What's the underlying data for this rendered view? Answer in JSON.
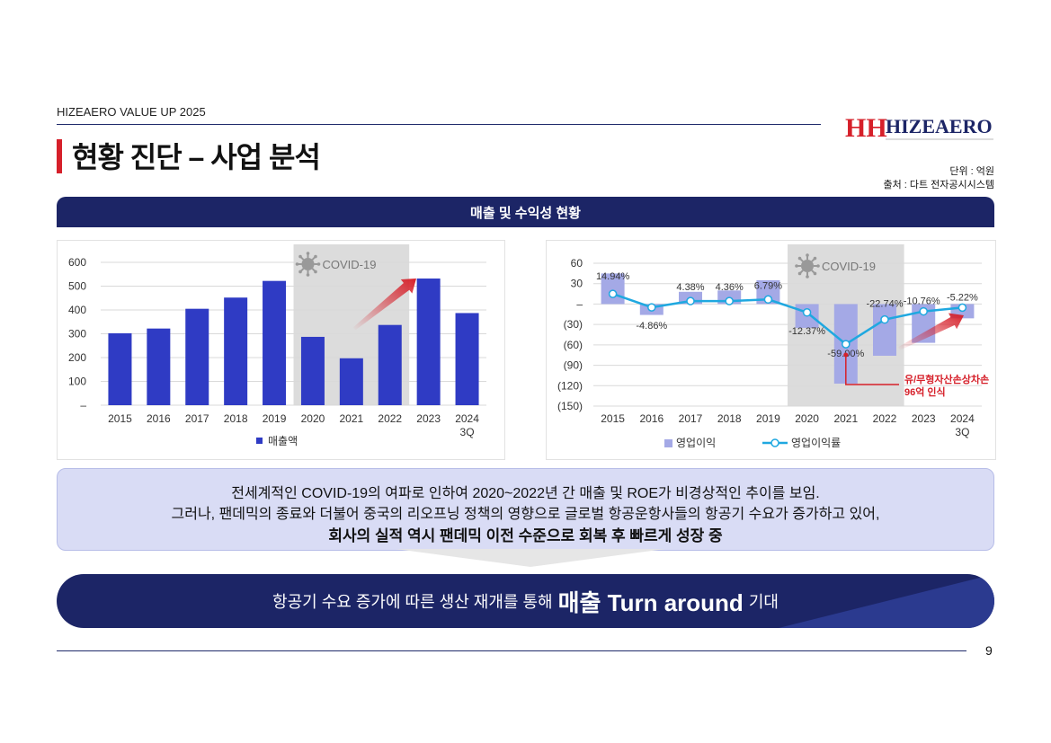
{
  "header": {
    "brand_line": "HIZEAERO VALUE UP 2025",
    "page_title": "현황 진단 – 사업 분석",
    "logo_text": "HIZEAERO",
    "logo_mark": "HH",
    "unit_text": "단위 : 억원",
    "source_text": "출처 : 다트 전자공시시스템"
  },
  "banner": {
    "title": "매출 및 수익성 현황"
  },
  "colors": {
    "navy": "#1c2566",
    "bar_blue": "#2f3bc4",
    "bar_light": "#a4a9e6",
    "line_cyan": "#1fa8e0",
    "red": "#d6202a",
    "covid_band": "#dcdcdc"
  },
  "chart_data": [
    {
      "type": "bar",
      "categories": [
        "2015",
        "2016",
        "2017",
        "2018",
        "2019",
        "2020",
        "2021",
        "2022",
        "2023",
        "2024\n3Q"
      ],
      "series": [
        {
          "name": "매출액",
          "values": [
            302,
            322,
            405,
            452,
            522,
            287,
            197,
            337,
            532,
            387
          ]
        }
      ],
      "y_ticks": [
        "–",
        "100",
        "200",
        "300",
        "400",
        "500",
        "600"
      ],
      "ylim": [
        0,
        600
      ],
      "grid": true,
      "legend": "bottom-center",
      "annotation": "COVID-19",
      "covid_range": [
        "2020",
        "2022"
      ]
    },
    {
      "type": "bar+line",
      "categories": [
        "2015",
        "2016",
        "2017",
        "2018",
        "2019",
        "2020",
        "2021",
        "2022",
        "2023",
        "2024\n3Q"
      ],
      "series": [
        {
          "name": "영업이익",
          "type": "bar",
          "values": [
            45,
            -16,
            18,
            20,
            35,
            -35,
            -117,
            -76,
            -57,
            -21
          ]
        },
        {
          "name": "영업이익률",
          "type": "line",
          "values": [
            14.94,
            -4.86,
            4.38,
            4.36,
            6.79,
            -12.37,
            -59.0,
            -22.74,
            -10.76,
            -5.22
          ],
          "labels": [
            "14.94%",
            "-4.86%",
            "4.38%",
            "4.36%",
            "6.79%",
            "-12.37%",
            "-59.00%",
            "-22.74%",
            "-10.76%",
            "-5.22%"
          ]
        }
      ],
      "y_ticks": [
        "60",
        "30",
        "–",
        "(30)",
        "(60)",
        "(90)",
        "(120)",
        "(150)"
      ],
      "ylim": [
        -150,
        60
      ],
      "grid": true,
      "legend": "bottom-center",
      "annotation": "COVID-19",
      "callout": [
        "유/무형자산손상차손",
        "96억 인식"
      ],
      "covid_range": [
        "2020",
        "2022"
      ]
    }
  ],
  "summary": {
    "line1": "전세계적인 COVID-19의 여파로 인하여 2020~2022년 간 매출 및 ROE가 비경상적인 추이를 보임.",
    "line2": "그러나, 팬데믹의 종료와 더불어 중국의 리오프닝 정책의 영향으로 글로벌 항공운항사들의 항공기 수요가 증가하고 있어,",
    "line3": "회사의 실적 역시 팬데믹 이전 수준으로 회복 후 빠르게 성장 중"
  },
  "conclusion": {
    "pre": "항공기 수요 증가에 따른 생산 재개를 통해",
    "highlight": "매출 Turn around",
    "post": "기대"
  },
  "footer": {
    "page_number": "9"
  }
}
